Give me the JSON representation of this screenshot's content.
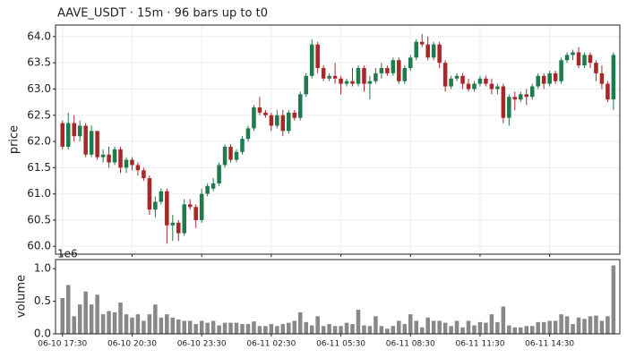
{
  "chart_data": [
    {
      "type": "candlestick",
      "title": "AAVE_USDT  ·  15m  ·  96 bars up to t0",
      "ylabel": "price",
      "up_color": "#1f7a4d",
      "down_color": "#a8282a",
      "grid": true,
      "xlim": [
        -1.2,
        96.1
      ],
      "ylim": [
        59.85,
        64.22
      ],
      "yticks": [
        {
          "value": 60,
          "label": "60.0"
        },
        {
          "value": 60.5,
          "label": "60.5"
        },
        {
          "value": 61,
          "label": "61.0"
        },
        {
          "value": 61.5,
          "label": "61.5"
        },
        {
          "value": 62,
          "label": "62.0"
        },
        {
          "value": 62.5,
          "label": "62.5"
        },
        {
          "value": 63,
          "label": "63.0"
        },
        {
          "value": 63.5,
          "label": "63.5"
        },
        {
          "value": 64,
          "label": "64.0"
        }
      ],
      "open": [
        62.35,
        61.9,
        62.35,
        62.1,
        62.3,
        61.75,
        62.2,
        61.7,
        61.75,
        61.6,
        61.85,
        61.5,
        61.65,
        61.55,
        61.45,
        61.3,
        60.7,
        60.85,
        61.05,
        60.4,
        60.45,
        60.25,
        60.8,
        60.75,
        60.5,
        61.0,
        61.1,
        61.2,
        61.55,
        61.9,
        61.65,
        61.8,
        62.05,
        62.25,
        62.65,
        62.55,
        62.5,
        62.3,
        62.5,
        62.2,
        62.55,
        62.45,
        62.9,
        63.25,
        63.85,
        63.4,
        63.2,
        63.25,
        63.2,
        63.1,
        63.15,
        63.1,
        63.4,
        63.1,
        63.15,
        63.3,
        63.4,
        63.3,
        63.55,
        63.15,
        63.4,
        63.6,
        63.9,
        63.85,
        63.6,
        63.85,
        63.5,
        63.05,
        63.2,
        63.25,
        63.1,
        63.0,
        63.1,
        63.2,
        63.1,
        63.0,
        63.05,
        62.45,
        62.85,
        62.8,
        62.9,
        62.85,
        63.05,
        63.25,
        63.1,
        63.3,
        63.15,
        63.55,
        63.65,
        63.7,
        63.45,
        63.65,
        63.5,
        63.3,
        63.1,
        62.8
      ],
      "high": [
        62.4,
        62.55,
        62.5,
        62.4,
        62.35,
        62.3,
        62.2,
        61.85,
        61.9,
        61.9,
        61.9,
        61.7,
        61.7,
        61.6,
        61.5,
        61.35,
        60.95,
        61.1,
        61.1,
        60.6,
        60.5,
        60.9,
        60.9,
        60.8,
        61.1,
        61.2,
        61.3,
        61.6,
        61.95,
        61.95,
        61.85,
        62.1,
        62.3,
        62.7,
        62.85,
        62.6,
        62.55,
        62.6,
        62.6,
        62.6,
        62.6,
        62.95,
        63.3,
        63.95,
        63.9,
        63.45,
        63.3,
        63.5,
        63.25,
        63.2,
        63.4,
        63.45,
        63.45,
        63.25,
        63.4,
        63.5,
        63.45,
        63.6,
        63.6,
        63.45,
        63.65,
        63.95,
        64.05,
        64.0,
        63.9,
        63.9,
        63.55,
        63.25,
        63.3,
        63.3,
        63.2,
        63.15,
        63.25,
        63.25,
        63.2,
        63.1,
        63.1,
        62.9,
        62.95,
        62.95,
        63.0,
        63.1,
        63.3,
        63.3,
        63.35,
        63.35,
        63.6,
        63.7,
        63.75,
        63.8,
        63.7,
        63.7,
        63.55,
        63.45,
        63.15,
        63.7
      ],
      "low": [
        61.85,
        61.85,
        62.0,
        62.0,
        61.7,
        61.7,
        61.65,
        61.6,
        61.5,
        61.55,
        61.4,
        61.4,
        61.45,
        61.35,
        61.25,
        60.6,
        60.55,
        60.8,
        60.05,
        60.1,
        60.1,
        60.2,
        60.7,
        60.35,
        60.45,
        60.95,
        61.05,
        61.15,
        61.5,
        61.6,
        61.6,
        61.75,
        62.0,
        62.2,
        62.5,
        62.45,
        62.2,
        62.25,
        62.1,
        62.15,
        62.4,
        62.4,
        62.85,
        63.2,
        63.3,
        63.15,
        63.15,
        63.1,
        62.9,
        63.05,
        63.05,
        63.05,
        62.95,
        62.8,
        63.1,
        63.2,
        63.25,
        63.25,
        63.1,
        63.1,
        63.35,
        63.55,
        63.8,
        63.55,
        63.55,
        63.4,
        62.95,
        63.0,
        63.15,
        63.0,
        62.95,
        62.95,
        63.05,
        63.05,
        62.9,
        62.9,
        62.35,
        62.3,
        62.6,
        62.75,
        62.7,
        62.8,
        63.0,
        63.0,
        63.05,
        63.1,
        63.1,
        63.5,
        63.55,
        63.4,
        63.4,
        63.4,
        63.15,
        63.0,
        62.75,
        62.6
      ],
      "close": [
        61.9,
        62.35,
        62.1,
        62.3,
        61.75,
        62.2,
        61.7,
        61.75,
        61.6,
        61.85,
        61.5,
        61.65,
        61.55,
        61.45,
        61.3,
        60.7,
        60.85,
        61.05,
        60.4,
        60.45,
        60.25,
        60.8,
        60.75,
        60.5,
        61.0,
        61.15,
        61.2,
        61.55,
        61.9,
        61.65,
        61.8,
        62.05,
        62.25,
        62.65,
        62.55,
        62.5,
        62.3,
        62.5,
        62.2,
        62.55,
        62.45,
        62.9,
        63.25,
        63.85,
        63.4,
        63.2,
        63.25,
        63.2,
        63.1,
        63.15,
        63.1,
        63.4,
        63.1,
        63.15,
        63.3,
        63.4,
        63.3,
        63.55,
        63.15,
        63.4,
        63.6,
        63.9,
        63.85,
        63.6,
        63.85,
        63.5,
        63.05,
        63.2,
        63.25,
        63.1,
        63.0,
        63.1,
        63.2,
        63.1,
        63.0,
        63.05,
        62.45,
        62.85,
        62.8,
        62.9,
        62.85,
        63.05,
        63.25,
        63.1,
        63.3,
        63.15,
        63.55,
        63.65,
        63.7,
        63.45,
        63.65,
        63.5,
        63.3,
        63.1,
        62.8,
        63.65
      ]
    },
    {
      "type": "bar",
      "ylabel": "volume",
      "offset_label": "1e6",
      "color": "#888888",
      "xlim": [
        -1.2,
        96.1
      ],
      "ylim": [
        0,
        1.14
      ],
      "yticks": [
        {
          "value": 0,
          "label": "0.0"
        },
        {
          "value": 0.5,
          "label": "0.5"
        },
        {
          "value": 1,
          "label": "1.0"
        }
      ],
      "categories": [
        "06-10 17:30",
        null,
        null,
        null,
        null,
        null,
        null,
        null,
        null,
        null,
        null,
        null,
        "06-10 20:30",
        null,
        null,
        null,
        null,
        null,
        null,
        null,
        null,
        null,
        null,
        null,
        "06-10 23:30",
        null,
        null,
        null,
        null,
        null,
        null,
        null,
        null,
        null,
        null,
        null,
        "06-11 02:30",
        null,
        null,
        null,
        null,
        null,
        null,
        null,
        null,
        null,
        null,
        null,
        "06-11 05:30",
        null,
        null,
        null,
        null,
        null,
        null,
        null,
        null,
        null,
        null,
        null,
        "06-11 08:30",
        null,
        null,
        null,
        null,
        null,
        null,
        null,
        null,
        null,
        null,
        null,
        "06-11 11:30",
        null,
        null,
        null,
        null,
        null,
        null,
        null,
        null,
        null,
        null,
        null,
        "06-11 14:30",
        null,
        null,
        null,
        null,
        null,
        null,
        null,
        null,
        null,
        null,
        null
      ],
      "values": [
        0.55,
        0.75,
        0.27,
        0.45,
        0.65,
        0.45,
        0.6,
        0.3,
        0.35,
        0.33,
        0.48,
        0.3,
        0.25,
        0.3,
        0.2,
        0.3,
        0.45,
        0.25,
        0.3,
        0.25,
        0.22,
        0.2,
        0.2,
        0.15,
        0.2,
        0.17,
        0.2,
        0.13,
        0.17,
        0.17,
        0.17,
        0.15,
        0.15,
        0.19,
        0.12,
        0.12,
        0.15,
        0.12,
        0.15,
        0.17,
        0.2,
        0.33,
        0.18,
        0.13,
        0.27,
        0.12,
        0.15,
        0.12,
        0.12,
        0.17,
        0.15,
        0.37,
        0.13,
        0.12,
        0.27,
        0.12,
        0.08,
        0.12,
        0.2,
        0.15,
        0.3,
        0.2,
        0.1,
        0.25,
        0.2,
        0.2,
        0.17,
        0.12,
        0.2,
        0.1,
        0.2,
        0.13,
        0.18,
        0.17,
        0.3,
        0.18,
        0.42,
        0.13,
        0.1,
        0.1,
        0.12,
        0.12,
        0.18,
        0.18,
        0.2,
        0.2,
        0.3,
        0.27,
        0.15,
        0.25,
        0.23,
        0.27,
        0.28,
        0.2,
        0.27,
        1.05
      ]
    }
  ]
}
